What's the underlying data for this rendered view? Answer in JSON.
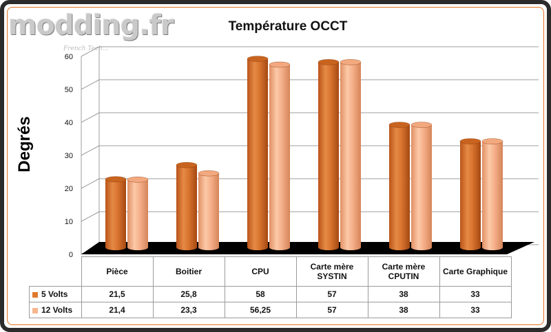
{
  "branding": {
    "logo": "modding.fr",
    "tagline": "French Tech..."
  },
  "chart_data": {
    "type": "bar",
    "title": "Température OCCT",
    "ylabel": "Degrés",
    "xlabel": "",
    "ylim": [
      0,
      60
    ],
    "yticks": [
      0,
      10,
      20,
      30,
      40,
      50,
      60
    ],
    "grid": true,
    "categories": [
      "Pièce",
      "Boitier",
      "CPU",
      "Carte mère SYSTIN",
      "Carte mère CPUTIN",
      "Carte Graphique"
    ],
    "series": [
      {
        "name": "5 Volts",
        "color": "#e07a2e",
        "values": [
          21.5,
          25.8,
          58,
          57,
          38,
          33
        ],
        "labels": [
          "21,5",
          "25,8",
          "58",
          "57",
          "38",
          "33"
        ]
      },
      {
        "name": "12 Volts",
        "color": "#f7b58d",
        "values": [
          21.4,
          23.3,
          56.25,
          57,
          38,
          33
        ],
        "labels": [
          "21,4",
          "23,3",
          "56,25",
          "57",
          "38",
          "33"
        ]
      }
    ]
  }
}
